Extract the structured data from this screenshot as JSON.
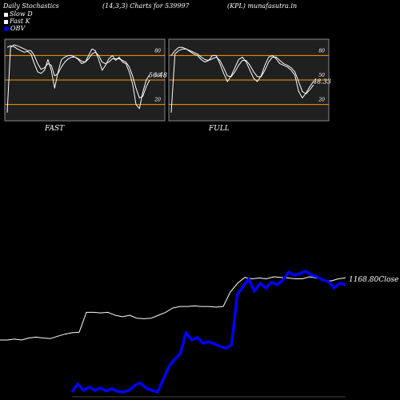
{
  "header": {
    "left": "Daily Stochastics",
    "mid": "(14,3,3) Charts for 539997",
    "right": "(KPL) munafasutra.in"
  },
  "legend": {
    "slow_d": "Slow  D",
    "fast_k": "Fast  K",
    "obv": "OBV"
  },
  "colors": {
    "background": "#000000",
    "panel_bg": "#202020",
    "panel_border": "#888888",
    "level_line": "#ff9900",
    "stoch_line": "#ffffff",
    "obv_line": "#0000ff",
    "price_line": "#ffffff"
  },
  "chart_data": [
    {
      "type": "line",
      "name_label": "FAST",
      "last_value_label": "56.48",
      "tick_labels": [
        "80",
        "50",
        "20"
      ],
      "levels": [
        80,
        50,
        20
      ],
      "ylim": [
        0,
        100
      ],
      "series": [
        {
          "values": [
            90,
            92,
            91,
            88,
            86,
            84,
            85,
            82,
            70,
            60,
            58,
            62,
            75,
            62,
            40,
            60,
            75,
            78,
            80,
            80,
            78,
            75,
            70,
            72,
            80,
            88,
            86,
            75,
            62,
            68,
            76,
            80,
            74,
            78,
            72,
            70,
            60,
            45,
            20,
            15,
            35,
            50,
            56.48
          ]
        },
        {
          "values": [
            10,
            90,
            93,
            92,
            90,
            88,
            86,
            86,
            80,
            70,
            63,
            65,
            70,
            68,
            55,
            58,
            66,
            72,
            76,
            78,
            78,
            76,
            73,
            72,
            76,
            82,
            84,
            80,
            72,
            70,
            72,
            76,
            76,
            76,
            74,
            72,
            66,
            55,
            40,
            28,
            30,
            42,
            50
          ]
        }
      ]
    },
    {
      "type": "line",
      "name_label": "FULL",
      "last_value_label": "48.33",
      "tick_labels": [
        "80",
        "50",
        "20"
      ],
      "levels": [
        80,
        50,
        20
      ],
      "ylim": [
        0,
        100
      ],
      "series": [
        {
          "values": [
            80,
            86,
            90,
            90,
            88,
            85,
            82,
            80,
            75,
            72,
            74,
            80,
            80,
            70,
            58,
            48,
            55,
            65,
            75,
            78,
            72,
            62,
            52,
            48,
            55,
            68,
            78,
            80,
            76,
            70,
            68,
            66,
            62,
            56,
            36,
            28,
            34,
            42,
            48.33
          ]
        },
        {
          "values": [
            10,
            82,
            86,
            88,
            88,
            86,
            84,
            82,
            78,
            75,
            74,
            76,
            78,
            74,
            65,
            55,
            54,
            60,
            68,
            74,
            74,
            68,
            60,
            54,
            54,
            62,
            72,
            78,
            78,
            74,
            70,
            68,
            65,
            60,
            48,
            36,
            33,
            38,
            44
          ]
        }
      ]
    },
    {
      "type": "line",
      "price_label": "1168.80",
      "price_suffix": "Close",
      "price": [
        955,
        955,
        958,
        955,
        962,
        965,
        962,
        960,
        968,
        975,
        980,
        982,
        1050,
        1050,
        1048,
        1050,
        1040,
        1035,
        1040,
        1030,
        1028,
        1030,
        1040,
        1050,
        1065,
        1070,
        1070,
        1072,
        1070,
        1070,
        1068,
        1070,
        1120,
        1150,
        1170,
        1165,
        1168,
        1165,
        1172,
        1170,
        1168,
        1165,
        1165,
        1172,
        1168,
        1160,
        1158,
        1165,
        1168.8
      ],
      "obv": [
        0,
        25,
        5,
        15,
        5,
        12,
        3,
        10,
        2,
        0,
        5,
        20,
        28,
        12,
        5,
        0,
        38,
        78,
        100,
        118,
        183,
        160,
        168,
        150,
        155,
        148,
        140,
        135,
        145,
        300,
        325,
        348,
        310,
        335,
        320,
        338,
        330,
        345,
        368,
        360,
        365,
        372,
        360,
        355,
        345,
        340,
        320,
        335,
        330
      ]
    }
  ]
}
